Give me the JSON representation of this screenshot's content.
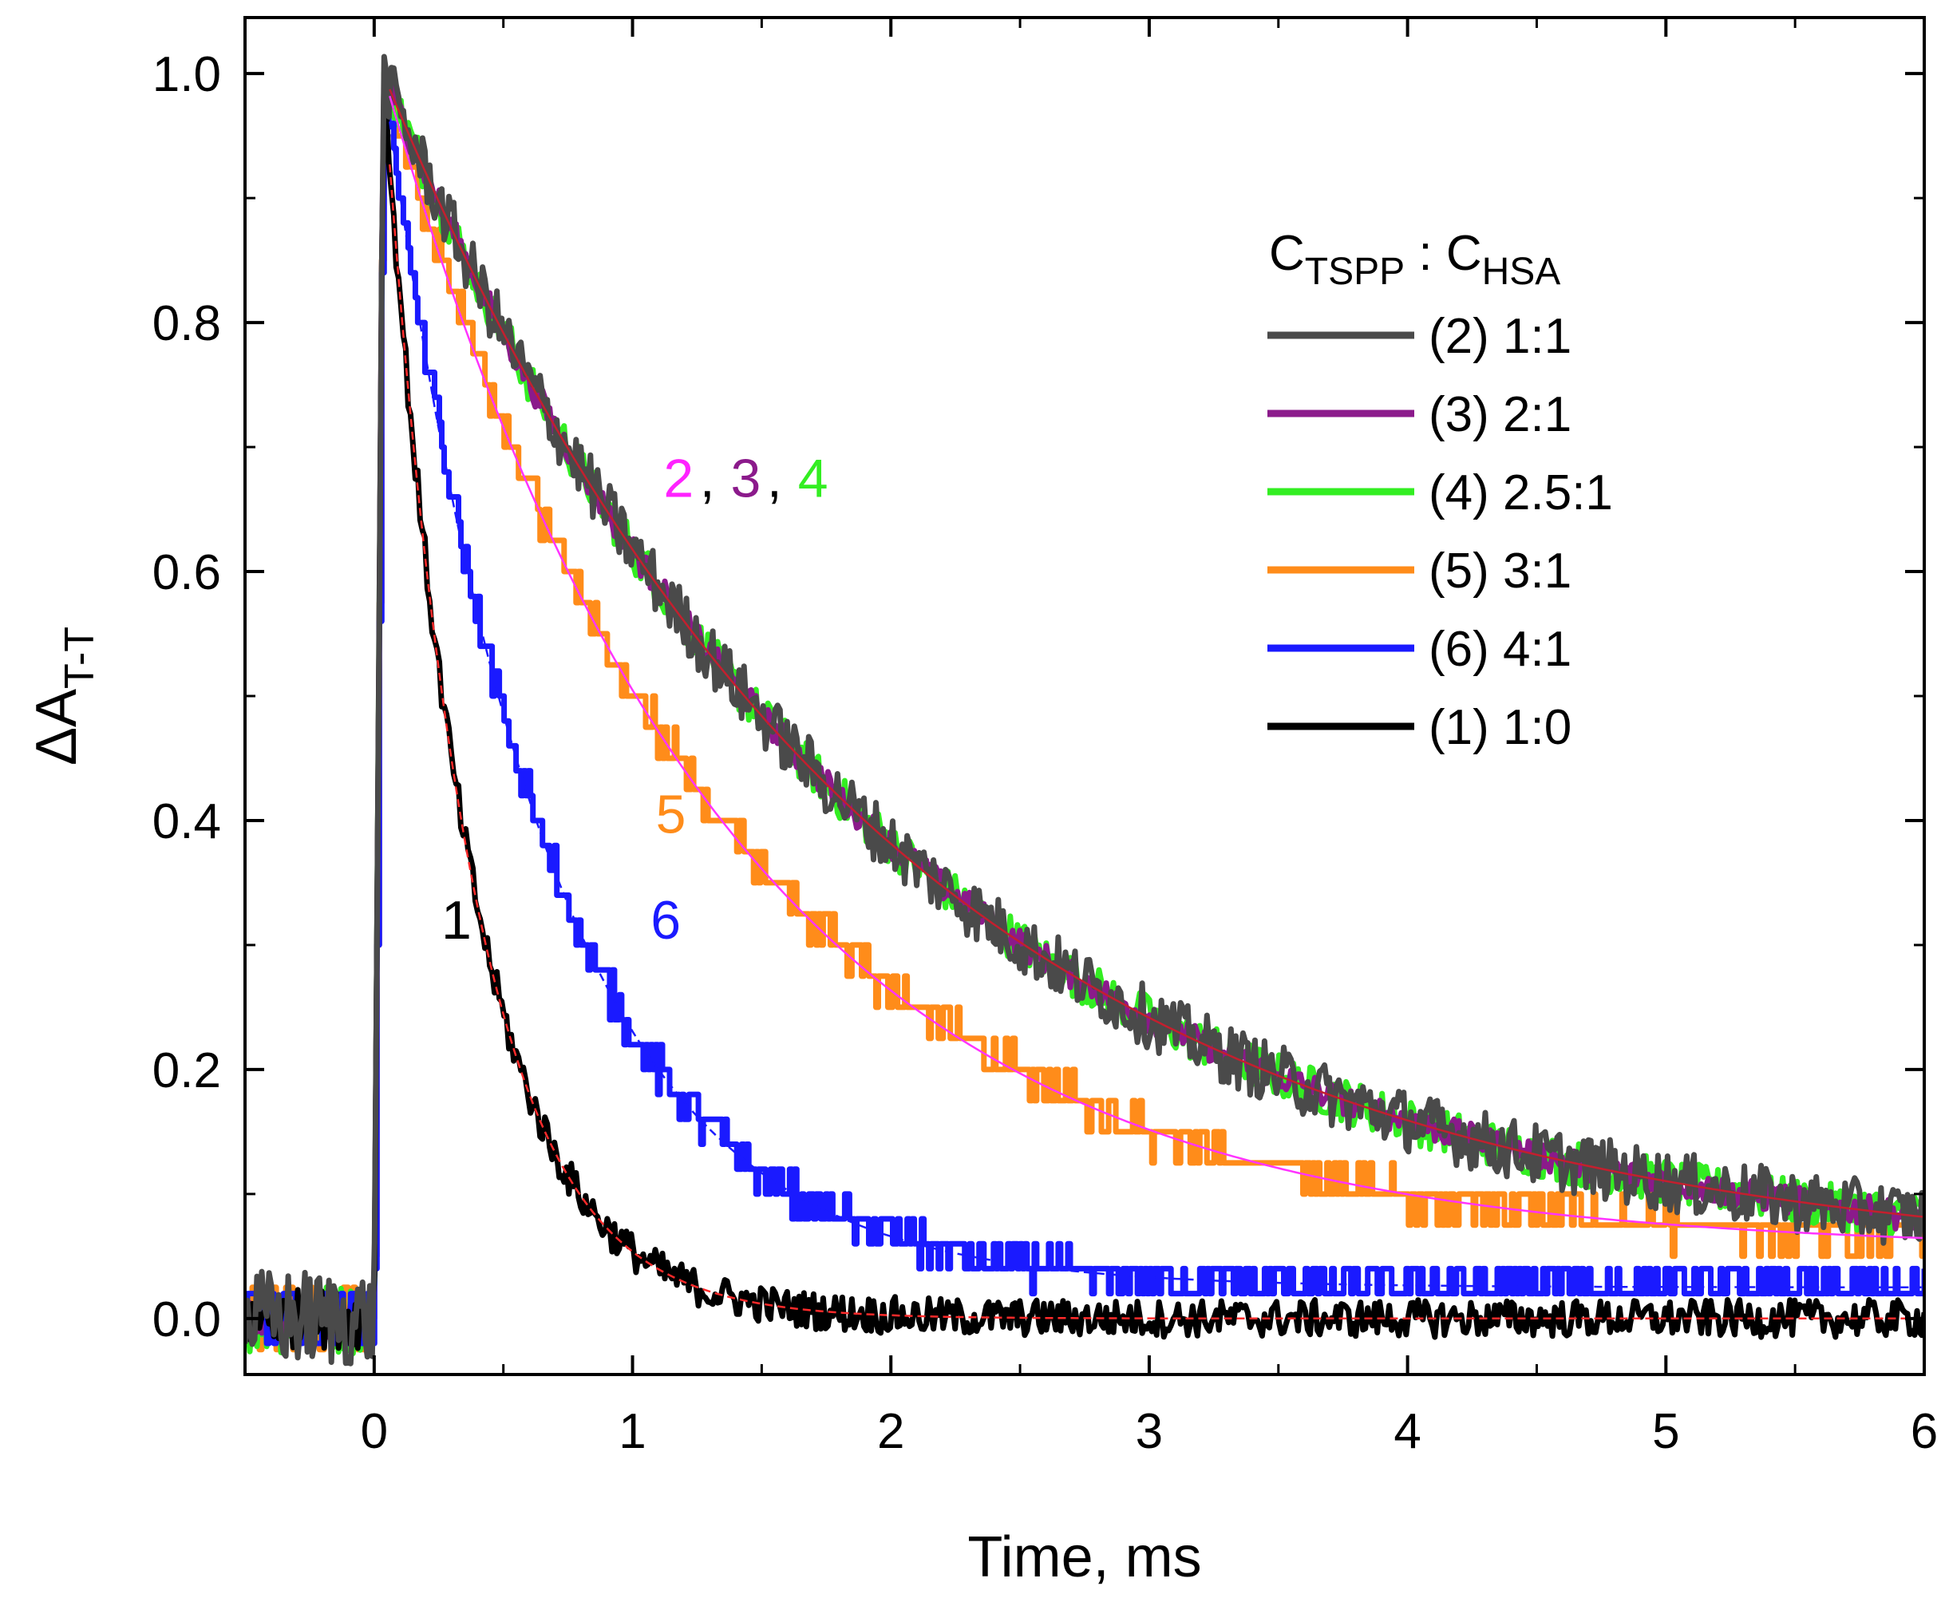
{
  "chart_data": {
    "type": "line",
    "title": "",
    "xlabel": "Time, ms",
    "ylabel": {
      "main": "ΔA",
      "sub": "T-T"
    },
    "xlim": [
      -0.5,
      6
    ],
    "ylim": [
      -0.045,
      1.045
    ],
    "x_major_ticks": [
      0,
      1,
      2,
      3,
      4,
      5,
      6
    ],
    "x_tick_labels": [
      "0",
      "1",
      "2",
      "3",
      "4",
      "5",
      "6"
    ],
    "x_minor_step": 0.5,
    "y_major_ticks": [
      0.0,
      0.2,
      0.4,
      0.6,
      0.8,
      1.0
    ],
    "y_tick_labels": [
      "0.0",
      "0.2",
      "0.4",
      "0.6",
      "0.8",
      "1.0"
    ],
    "y_minor_step": 0.1,
    "grid": false,
    "legend_position": "top-right",
    "legend_title": {
      "c1": "C",
      "sub1": "TSPP",
      "sep": " : ",
      "c2": "C",
      "sub2": "HSA"
    },
    "series": [
      {
        "id": "2",
        "name": "(2) 1:1",
        "color": "#4a4a4a",
        "tau_ms": 1.9,
        "plateau": 0.04,
        "noise": 0.025,
        "step": 0.0
      },
      {
        "id": "3",
        "name": "(3) 2:1",
        "color": "#8b1a8b",
        "tau_ms": 1.9,
        "plateau": 0.04,
        "noise": 0.012,
        "step": 0.0
      },
      {
        "id": "4",
        "name": "(4) 2.5:1",
        "color": "#33ee22",
        "tau_ms": 1.9,
        "plateau": 0.04,
        "noise": 0.018,
        "step": 0.0
      },
      {
        "id": "5",
        "name": "(5) 3:1",
        "color": "#ff8c1a",
        "tau_ms": 1.3,
        "plateau": 0.055,
        "noise": 0.014,
        "step": 0.025
      },
      {
        "id": "6",
        "name": "(6) 4:1",
        "color": "#1a1aff",
        "tau_ms": 0.62,
        "plateau": 0.025,
        "noise": 0.014,
        "step": 0.02
      },
      {
        "id": "1",
        "name": "(1) 1:0",
        "color": "#000000",
        "tau_ms": 0.33,
        "plateau": 0.0,
        "noise": 0.015,
        "step": 0.0
      }
    ],
    "fits": [
      {
        "for": "1",
        "color": "#ff2a2a",
        "dashed": true
      },
      {
        "for": "6",
        "color": "#1a1aff",
        "dashed": true
      },
      {
        "for": "5",
        "color": "#ff33ff",
        "dashed": false
      },
      {
        "for": "2",
        "color": "#c41f2e",
        "dashed": false
      }
    ],
    "annotations": [
      {
        "text": "2",
        "color": "#ff22ff",
        "x": 1.12,
        "y": 0.66
      },
      {
        "text": ", ",
        "color": "#000000",
        "x": 1.26,
        "y": 0.66
      },
      {
        "text": "3",
        "color": "#8b1a8b",
        "x": 1.38,
        "y": 0.66
      },
      {
        "text": ", ",
        "color": "#000000",
        "x": 1.52,
        "y": 0.66
      },
      {
        "text": "4",
        "color": "#33ee22",
        "x": 1.64,
        "y": 0.66
      },
      {
        "text": "5",
        "color": "#ff8c1a",
        "x": 1.09,
        "y": 0.39
      },
      {
        "text": "6",
        "color": "#1a1aff",
        "x": 1.07,
        "y": 0.305
      },
      {
        "text": "1",
        "color": "#000000",
        "x": 0.26,
        "y": 0.305
      }
    ]
  }
}
